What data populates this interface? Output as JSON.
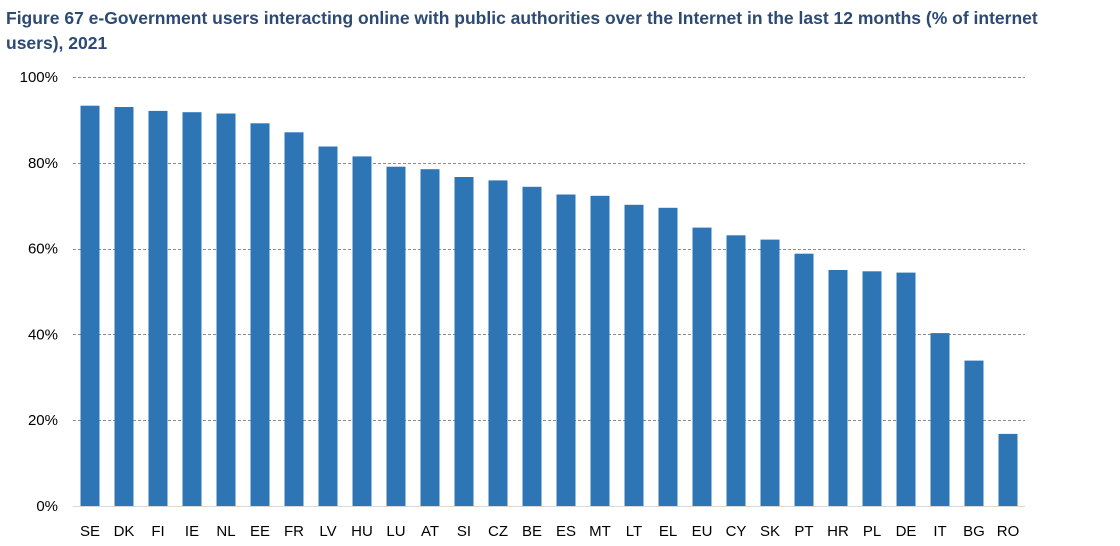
{
  "title": "Figure 67 e-Government users interacting online with public authorities over the Internet in the last 12 months (% of internet users), 2021",
  "colors": {
    "bar": "#2e75b6",
    "title": "#2c4a73",
    "grid": "#8c8c8c",
    "axis": "#d9d9d9"
  },
  "chart_data": {
    "type": "bar",
    "title": "Figure 67 e-Government users interacting online with public authorities over the Internet in the last 12 months (% of internet users), 2021",
    "xlabel": "",
    "ylabel": "",
    "ylim": [
      0,
      100
    ],
    "yticks": [
      0,
      20,
      40,
      60,
      80,
      100
    ],
    "ytick_labels": [
      "0%",
      "20%",
      "40%",
      "60%",
      "80%",
      "100%"
    ],
    "grid": "horizontal dashed",
    "legend": "none",
    "categories": [
      "SE",
      "DK",
      "FI",
      "IE",
      "NL",
      "EE",
      "FR",
      "LV",
      "HU",
      "LU",
      "AT",
      "SI",
      "CZ",
      "BE",
      "ES",
      "MT",
      "LT",
      "EL",
      "EU",
      "CY",
      "SK",
      "PT",
      "HR",
      "PL",
      "DE",
      "IT",
      "BG",
      "RO"
    ],
    "values": [
      93.3,
      93.0,
      92.1,
      91.8,
      91.5,
      89.2,
      87.1,
      83.8,
      81.5,
      79.1,
      78.5,
      76.7,
      75.9,
      74.4,
      72.6,
      72.3,
      70.2,
      69.5,
      64.9,
      63.1,
      62.1,
      58.8,
      55.0,
      54.7,
      54.4,
      40.3,
      33.9,
      16.8
    ]
  }
}
